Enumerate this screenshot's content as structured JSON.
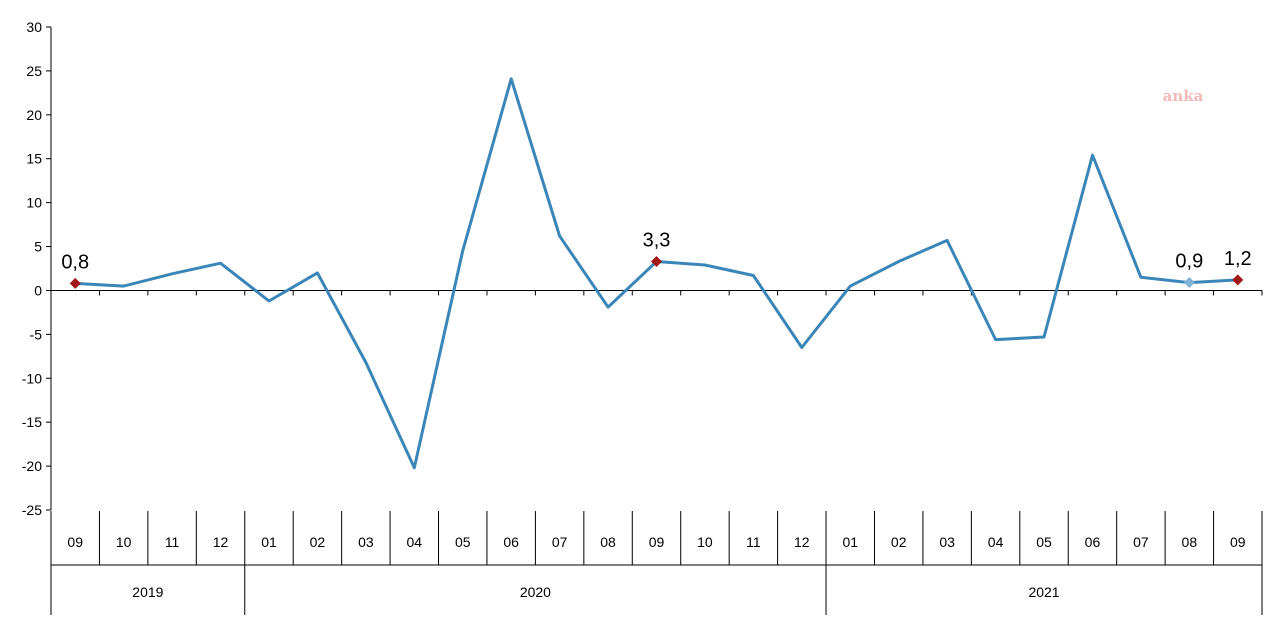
{
  "chart_data": {
    "type": "line",
    "title": "",
    "xlabel": "",
    "ylabel": "",
    "ylim": [
      -25,
      30
    ],
    "yticks": [
      30,
      25,
      20,
      15,
      10,
      5,
      0,
      -5,
      -10,
      -15,
      -20,
      -25
    ],
    "ytick_labels": [
      "30",
      "25",
      "20",
      "15",
      "10",
      "5",
      "0",
      "-5",
      "-10",
      "-15",
      "-20",
      "-25"
    ],
    "categories": [
      "09",
      "10",
      "11",
      "12",
      "01",
      "02",
      "03",
      "04",
      "05",
      "06",
      "07",
      "08",
      "09",
      "10",
      "11",
      "12",
      "01",
      "02",
      "03",
      "04",
      "05",
      "06",
      "07",
      "08",
      "09"
    ],
    "year_groups": [
      {
        "label": "2019",
        "start": 0,
        "count": 4
      },
      {
        "label": "2020",
        "start": 4,
        "count": 12
      },
      {
        "label": "2021",
        "start": 16,
        "count": 9
      }
    ],
    "series": [
      {
        "values": [
          0.8,
          0.5,
          1.9,
          3.1,
          -1.2,
          2.0,
          -8.2,
          -20.2,
          4.5,
          24.1,
          6.2,
          -1.9,
          3.3,
          2.9,
          1.7,
          -6.5,
          0.5,
          3.3,
          5.7,
          -5.6,
          -5.3,
          15.4,
          1.5,
          0.9,
          1.2
        ],
        "color": "#3a86b8"
      }
    ],
    "highlighted_points": [
      {
        "index": 0,
        "label": "0,8",
        "marker_color": "#a01818"
      },
      {
        "index": 12,
        "label": "3,3",
        "marker_color": "#a01818"
      },
      {
        "index": 23,
        "label": "0,9",
        "marker_color": "#7fb3d8"
      },
      {
        "index": 24,
        "label": "1,2",
        "marker_color": "#a01818"
      }
    ],
    "grid": false,
    "legend": "none"
  },
  "watermark": "anka"
}
